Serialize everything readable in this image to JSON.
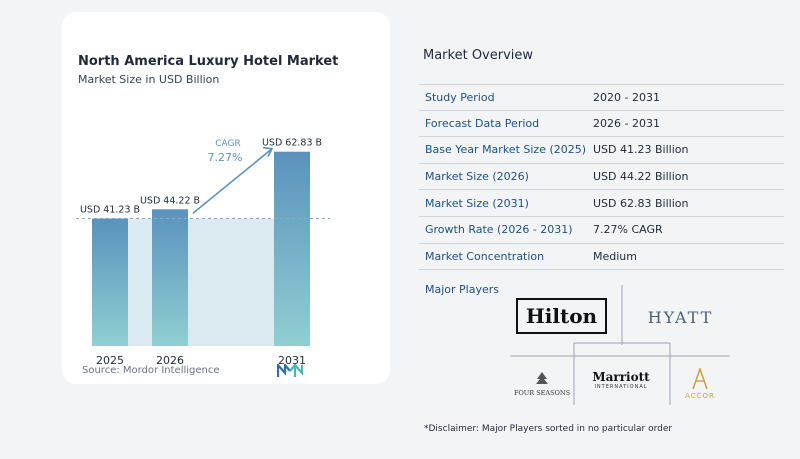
{
  "chart_data": {
    "type": "bar",
    "title": "North America Luxury Hotel Market",
    "subtitle": "Market Size in USD Billion",
    "categories": [
      "2025",
      "2026",
      "2031"
    ],
    "values": [
      41.23,
      44.22,
      62.83
    ],
    "data_labels": [
      "USD 41.23 B",
      "USD 44.22 B",
      "USD 62.83 B"
    ],
    "ylim": [
      0,
      65
    ],
    "annotation": {
      "label": "CAGR",
      "value": "7.27%"
    },
    "source": "Source:  Mordor Intelligence",
    "colors": {
      "bar_top": "#5a92bd",
      "bar_bottom": "#8fcfd2",
      "band": "#dbe9f1",
      "dashed": "#8fa9b7",
      "arrow": "#5a92bd"
    }
  },
  "overview": {
    "title": "Market Overview",
    "rows": [
      {
        "label": "Study Period",
        "value": "2020 - 2031"
      },
      {
        "label": "Forecast Data Period",
        "value": "2026 - 2031"
      },
      {
        "label": "Base Year Market Size (2025)",
        "value": "USD 41.23 Billion"
      },
      {
        "label": "Market Size (2026)",
        "value": "USD 44.22 Billion"
      },
      {
        "label": "Market Size (2031)",
        "value": "USD 62.83 Billion"
      },
      {
        "label": "Growth Rate (2026 - 2031)",
        "value": "7.27% CAGR"
      },
      {
        "label": "Market Concentration",
        "value": "Medium"
      }
    ]
  },
  "players": {
    "label": "Major Players",
    "logos": {
      "hilton": "Hilton",
      "hyatt": "HYATT",
      "four_seasons": "FOUR SEASONS",
      "marriott": "Marriott",
      "marriott_sub": "INTERNATIONAL",
      "accor": "ACCOR"
    }
  },
  "disclaimer": "*Disclaimer: Major Players sorted in no particular order"
}
